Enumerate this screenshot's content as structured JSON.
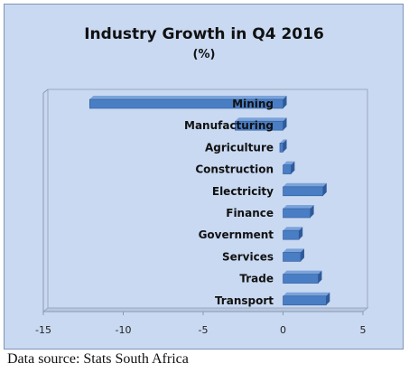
{
  "chart_data": {
    "type": "bar",
    "orientation": "horizontal",
    "title": "Industry Growth in Q4 2016",
    "subtitle": "(%)",
    "categories": [
      "Mining",
      "Manufacturing",
      "Agriculture",
      "Construction",
      "Electricity",
      "Finance",
      "Government",
      "Services",
      "Trade",
      "Transport"
    ],
    "values": [
      -12.1,
      -3.0,
      -0.2,
      0.5,
      2.5,
      1.7,
      1.0,
      1.1,
      2.2,
      2.7
    ],
    "xlim": [
      -15,
      5
    ],
    "xticks": [
      "-15",
      "-10",
      "-5",
      "0",
      "5"
    ],
    "xlabel": "",
    "ylabel": "",
    "grid": false,
    "legend": "none",
    "bar_color": "#4a7ec4",
    "bar_color_dark": "#2f5a99",
    "background_color": "#c9d9f2"
  },
  "source_note": "Data source: Stats South Africa"
}
